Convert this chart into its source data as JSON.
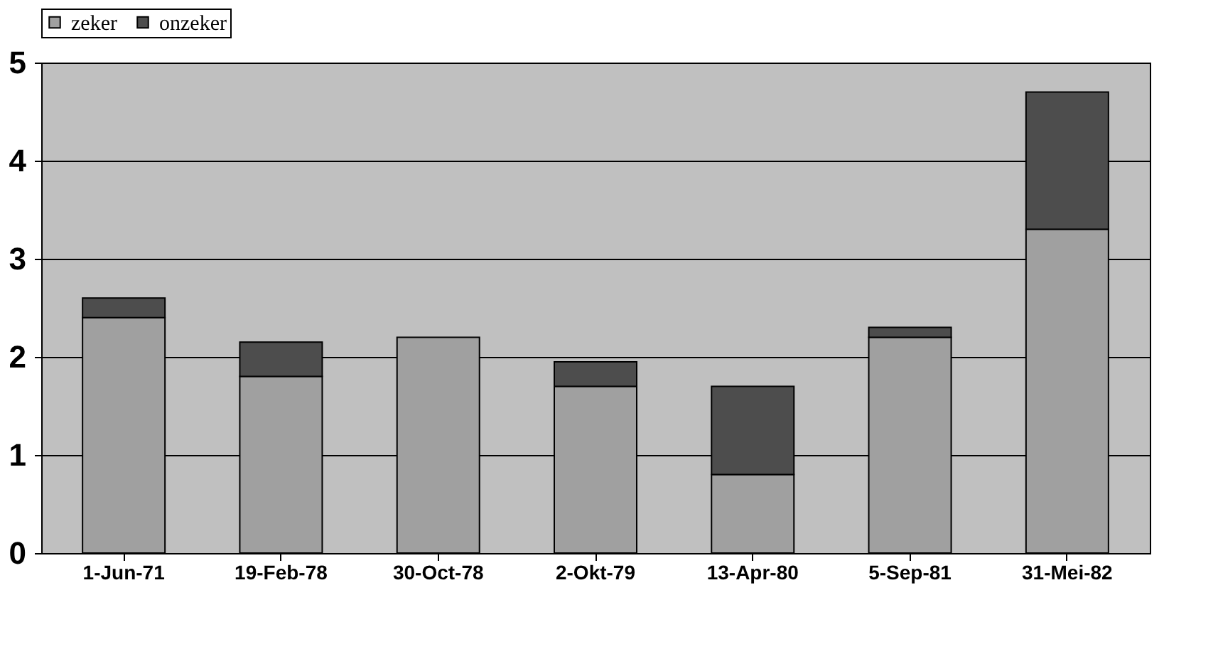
{
  "chart_data": {
    "type": "bar",
    "stacked": true,
    "categories": [
      "1-Jun-71",
      "19-Feb-78",
      "30-Oct-78",
      "2-Okt-79",
      "13-Apr-80",
      "5-Sep-81",
      "31-Mei-82"
    ],
    "series": [
      {
        "name": "zeker",
        "color": "#a0a0a0",
        "values": [
          2.4,
          1.8,
          2.2,
          1.7,
          0.8,
          2.2,
          3.3
        ]
      },
      {
        "name": "onzeker",
        "color": "#4d4d4d",
        "values": [
          0.2,
          0.35,
          null,
          0.25,
          0.9,
          0.1,
          1.4
        ]
      }
    ],
    "ylim": [
      0,
      5
    ],
    "yticks": [
      0,
      1,
      2,
      3,
      4,
      5
    ],
    "grid": "y",
    "legend": "top"
  }
}
